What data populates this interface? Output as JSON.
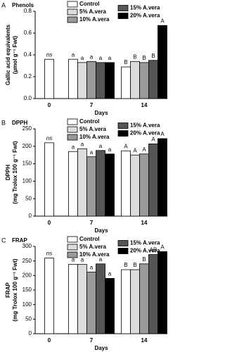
{
  "chart_data": [
    {
      "type": "bar",
      "panel": "A",
      "title": "Phenols",
      "ylabel": [
        "Gallic acid equivalents",
        "(µmol g⁻¹ Fwt)"
      ],
      "xlabel": "Days",
      "categories": [
        "0",
        "7",
        "14"
      ],
      "ylim": [
        0,
        0.8
      ],
      "yticks": [
        {
          "value": 0,
          "label": "0.0"
        },
        {
          "value": 0.2,
          "label": "0.2"
        },
        {
          "value": 0.4,
          "label": "0.4"
        },
        {
          "value": 0.6,
          "label": "0.6"
        },
        {
          "value": 0.8,
          "label": "0.8"
        }
      ],
      "series": [
        {
          "name": "Control",
          "color": "#ffffff",
          "values": [
            0.36,
            0.36,
            0.29
          ],
          "annotations": [
            "ns",
            "a",
            "B"
          ]
        },
        {
          "name": "5% A.vera",
          "color": "#dcdcdc",
          "values": [
            null,
            0.33,
            0.34
          ],
          "annotations": [
            null,
            "a",
            "B"
          ]
        },
        {
          "name": "10% A.vera",
          "color": "#9a9a9a",
          "values": [
            null,
            0.34,
            0.33
          ],
          "annotations": [
            null,
            "a",
            "B"
          ]
        },
        {
          "name": "15% A.vera",
          "color": "#555555",
          "values": [
            null,
            0.33,
            0.35
          ],
          "annotations": [
            null,
            "a",
            "B"
          ]
        },
        {
          "name": "20% A.vera",
          "color": "#000000",
          "values": [
            null,
            0.33,
            0.67
          ],
          "annotations": [
            null,
            "a",
            "A"
          ]
        }
      ]
    },
    {
      "type": "bar",
      "panel": "B",
      "title": "DPPH",
      "ylabel": [
        "DPPH",
        "(mg Trolox 100 g⁻¹ Fwt)"
      ],
      "xlabel": "Days",
      "categories": [
        "0",
        "7",
        "14"
      ],
      "ylim": [
        0,
        250
      ],
      "yticks": [
        0,
        50,
        100,
        150,
        200,
        250
      ],
      "series": [
        {
          "name": "Control",
          "color": "#ffffff",
          "values": [
            210,
            185,
            187
          ],
          "annotations": [
            "ns",
            "a",
            "A"
          ]
        },
        {
          "name": "5% A.vera",
          "color": "#dcdcdc",
          "values": [
            null,
            193,
            175
          ],
          "annotations": [
            null,
            "a",
            "A"
          ]
        },
        {
          "name": "10% A.vera",
          "color": "#9a9a9a",
          "values": [
            null,
            170,
            178
          ],
          "annotations": [
            null,
            "a",
            "A"
          ]
        },
        {
          "name": "15% A.vera",
          "color": "#555555",
          "values": [
            null,
            188,
            207
          ],
          "annotations": [
            null,
            "a",
            "A"
          ]
        },
        {
          "name": "20% A.vera",
          "color": "#000000",
          "values": [
            null,
            178,
            222
          ],
          "annotations": [
            null,
            "a",
            "A"
          ]
        }
      ]
    },
    {
      "type": "bar",
      "panel": "C",
      "title": "FRAP",
      "ylabel": [
        "FRAP",
        "(mg Trolox 100 g⁻¹ Fwt)"
      ],
      "xlabel": "Days",
      "categories": [
        "0",
        "7",
        "14"
      ],
      "ylim": [
        0,
        300
      ],
      "yticks": [
        0,
        50,
        100,
        150,
        200,
        250,
        300
      ],
      "series": [
        {
          "name": "Control",
          "color": "#ffffff",
          "values": [
            260,
            238,
            220
          ],
          "annotations": [
            "ns",
            "a",
            "B"
          ]
        },
        {
          "name": "5% A.vera",
          "color": "#dcdcdc",
          "values": [
            null,
            238,
            220
          ],
          "annotations": [
            null,
            "a",
            "B"
          ]
        },
        {
          "name": "10% A.vera",
          "color": "#9a9a9a",
          "values": [
            null,
            212,
            240
          ],
          "annotations": [
            null,
            "a",
            "B"
          ]
        },
        {
          "name": "15% A.vera",
          "color": "#555555",
          "values": [
            null,
            240,
            272
          ],
          "annotations": [
            null,
            "a",
            "AB"
          ]
        },
        {
          "name": "20% A.vera",
          "color": "#000000",
          "values": [
            null,
            190,
            282
          ],
          "annotations": [
            null,
            "a",
            "A"
          ]
        }
      ]
    }
  ]
}
